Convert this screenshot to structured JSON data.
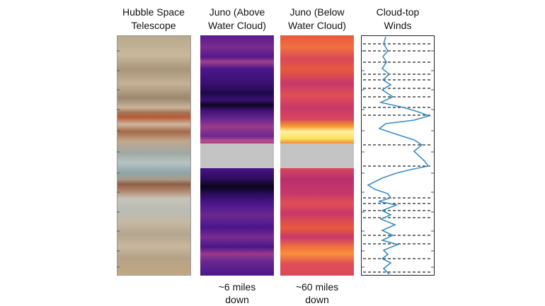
{
  "panels": [
    {
      "title_lines": [
        "Hubble Space",
        "Telescope"
      ]
    },
    {
      "title_lines": [
        "Juno (Above",
        "Water Cloud)"
      ],
      "footnote_lines": [
        "~6 miles",
        "down"
      ]
    },
    {
      "title_lines": [
        "Juno (Below",
        "Water Cloud)"
      ],
      "footnote_lines": [
        "~60 miles",
        "down"
      ]
    },
    {
      "title_lines": [
        "Cloud-top",
        "Winds"
      ]
    }
  ]
}
